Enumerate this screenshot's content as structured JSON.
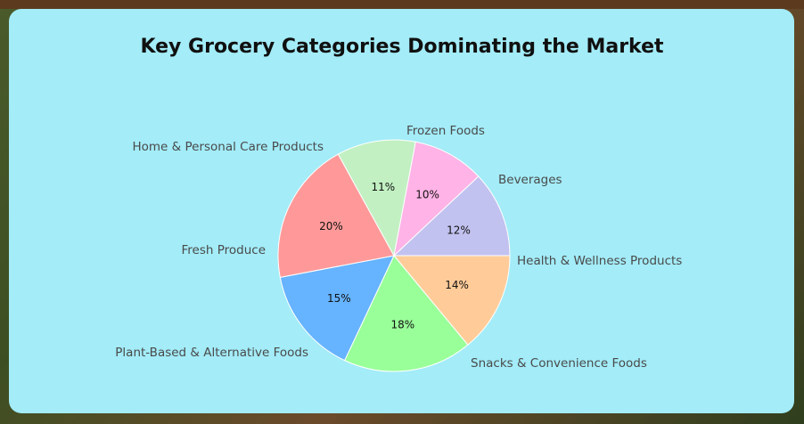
{
  "chart_data": {
    "type": "pie",
    "title": "Key Grocery Categories Dominating the Market",
    "slices": [
      {
        "label": "Health & Wellness Products",
        "value": 14,
        "display": "14%",
        "color": "#ffcc99"
      },
      {
        "label": "Snacks & Convenience Foods",
        "value": 18,
        "display": "18%",
        "color": "#99ff99"
      },
      {
        "label": "Plant-Based & Alternative Foods",
        "value": 15,
        "display": "15%",
        "color": "#66b3ff"
      },
      {
        "label": "Fresh Produce",
        "value": 20,
        "display": "20%",
        "color": "#ff9999"
      },
      {
        "label": "Home & Personal Care Products",
        "value": 11,
        "display": "11%",
        "color": "#c2f0c2"
      },
      {
        "label": "Frozen Foods",
        "value": 10,
        "display": "10%",
        "color": "#ffb3e6"
      },
      {
        "label": "Beverages",
        "value": 12,
        "display": "12%",
        "color": "#c2c2f0"
      }
    ],
    "start_angle_deg": 0,
    "direction": "clockwise"
  }
}
